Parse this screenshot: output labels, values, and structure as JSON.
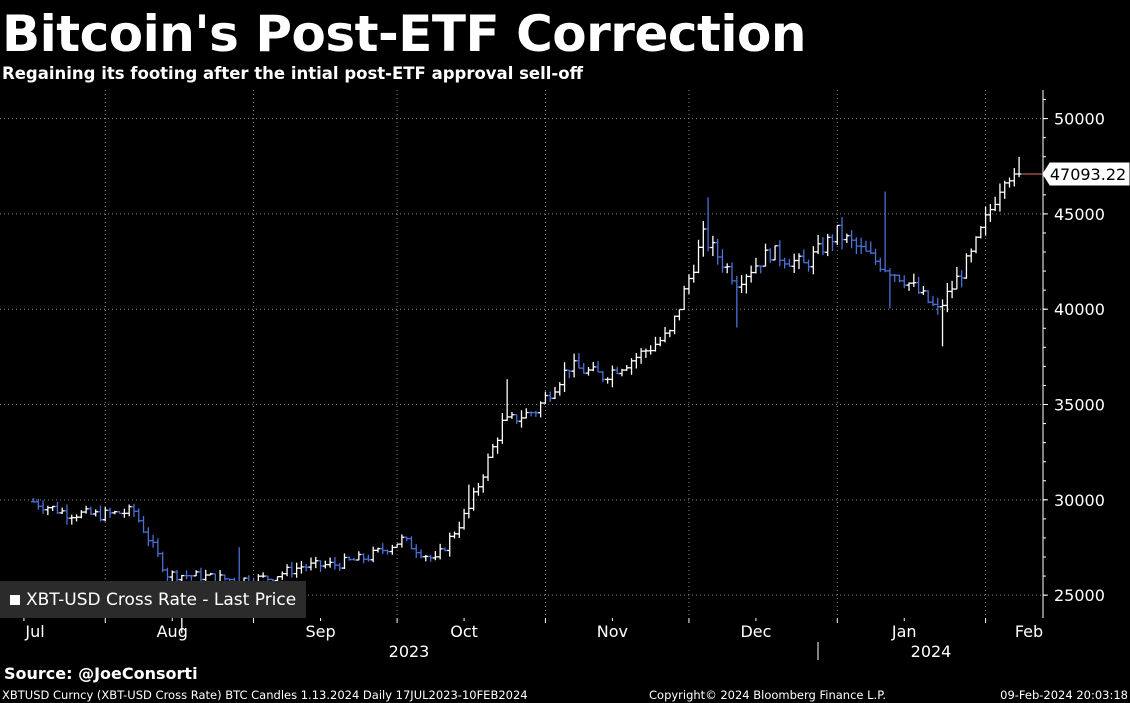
{
  "header": {
    "title": "Bitcoin's Post-ETF Correction",
    "subtitle": "Regaining its footing after the intial post-ETF approval sell-off"
  },
  "legend": {
    "label": "XBT-USD Cross Rate - Last Price"
  },
  "source": "Source: @JoeConsorti",
  "footer": {
    "left": "XBTUSD Curncy (XBT-USD Cross Rate) BTC Candles 1.13.2024  Daily 17JUL2023-10FEB2024",
    "mid": "Copyright© 2024 Bloomberg Finance L.P.",
    "right": "09-Feb-2024 20:03:18"
  },
  "colors": {
    "background": "#000000",
    "up_bar": "#ffffff",
    "down_bar": "#4a6fd6",
    "grid": "#8a8a8a",
    "last_price_line": "#e07a5f",
    "legend_bg": "#2b2b2b"
  },
  "chart_data": {
    "type": "ohlc",
    "title": "Bitcoin's Post-ETF Correction",
    "subtitle": "Regaining its footing after the intial post-ETF approval sell-off",
    "series_name": "XBT-USD Cross Rate - Last Price",
    "x_range": [
      "2023-07-17",
      "2024-02-10"
    ],
    "y_range": [
      23800,
      51500
    ],
    "y_ticks": [
      25000,
      30000,
      35000,
      40000,
      45000,
      50000
    ],
    "y_tick_labels": [
      "25000",
      "30000",
      "35000",
      "40000",
      "45000",
      "50000"
    ],
    "month_ticks": [
      {
        "label": "Jul",
        "date": "2023-07-01"
      },
      {
        "label": "Aug",
        "date": "2023-08-01"
      },
      {
        "label": "Sep",
        "date": "2023-09-01"
      },
      {
        "label": "Oct",
        "date": "2023-10-01"
      },
      {
        "label": "Nov",
        "date": "2023-11-01"
      },
      {
        "label": "Dec",
        "date": "2023-12-01"
      },
      {
        "label": "Jan",
        "date": "2024-01-01"
      },
      {
        "label": "Feb",
        "date": "2024-02-01"
      }
    ],
    "year_labels": [
      {
        "label": "2023",
        "date": "2023-10-01"
      },
      {
        "label": "2024",
        "date": "2024-01-15"
      }
    ],
    "last_price": 47093.22,
    "last_price_label": "47093.22",
    "grid": true,
    "legend_position": "bottom-left",
    "weekly_close": [
      {
        "date": "2023-07-17",
        "close": 29900
      },
      {
        "date": "2023-07-24",
        "close": 29300
      },
      {
        "date": "2023-07-31",
        "close": 29200
      },
      {
        "date": "2023-08-07",
        "close": 29400
      },
      {
        "date": "2023-08-14",
        "close": 26100
      },
      {
        "date": "2023-08-21",
        "close": 26000
      },
      {
        "date": "2023-08-28",
        "close": 25800
      },
      {
        "date": "2023-09-04",
        "close": 25900
      },
      {
        "date": "2023-09-11",
        "close": 26500
      },
      {
        "date": "2023-09-18",
        "close": 26600
      },
      {
        "date": "2023-09-25",
        "close": 27000
      },
      {
        "date": "2023-10-02",
        "close": 27900
      },
      {
        "date": "2023-10-09",
        "close": 26800
      },
      {
        "date": "2023-10-16",
        "close": 29500
      },
      {
        "date": "2023-10-23",
        "close": 34000
      },
      {
        "date": "2023-10-30",
        "close": 34700
      },
      {
        "date": "2023-11-06",
        "close": 37000
      },
      {
        "date": "2023-11-13",
        "close": 36500
      },
      {
        "date": "2023-11-20",
        "close": 37500
      },
      {
        "date": "2023-11-27",
        "close": 38700
      },
      {
        "date": "2023-12-04",
        "close": 43800
      },
      {
        "date": "2023-12-11",
        "close": 41500
      },
      {
        "date": "2023-12-18",
        "close": 43000
      },
      {
        "date": "2023-12-25",
        "close": 42300
      },
      {
        "date": "2024-01-01",
        "close": 44000
      },
      {
        "date": "2024-01-08",
        "close": 42700
      },
      {
        "date": "2024-01-15",
        "close": 41600
      },
      {
        "date": "2024-01-22",
        "close": 39900
      },
      {
        "date": "2024-01-29",
        "close": 42800
      },
      {
        "date": "2024-02-05",
        "close": 47093.22
      }
    ]
  }
}
